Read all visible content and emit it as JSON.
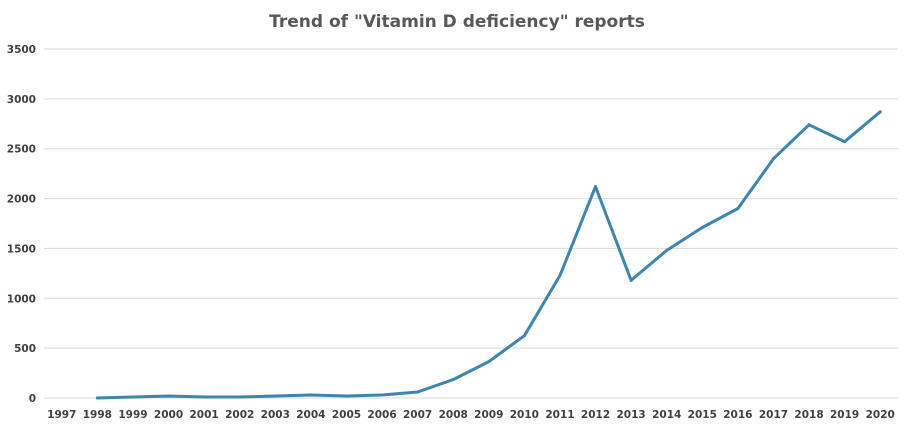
{
  "chart_data": {
    "type": "line",
    "title": "Trend of \"Vitamin D deficiency\" reports",
    "xlabel": "",
    "ylabel": "",
    "ylim": [
      0,
      3500
    ],
    "yticks": [
      0,
      500,
      1000,
      1500,
      2000,
      2500,
      3000,
      3500
    ],
    "grid": true,
    "legend": "none",
    "categories": [
      "1997",
      "1998",
      "1999",
      "2000",
      "2001",
      "2002",
      "2003",
      "2004",
      "2005",
      "2006",
      "2007",
      "2008",
      "2009",
      "2010",
      "2011",
      "2012",
      "2013",
      "2014",
      "2015",
      "2016",
      "2017",
      "2018",
      "2019",
      "2020"
    ],
    "series": [
      {
        "name": "Vitamin D deficiency",
        "color": "#3e85b0",
        "values": [
          null,
          0,
          10,
          20,
          10,
          10,
          20,
          30,
          20,
          30,
          60,
          185,
          365,
          625,
          1230,
          2120,
          1180,
          1480,
          1710,
          1900,
          2400,
          2740,
          2570,
          2870
        ]
      }
    ]
  }
}
